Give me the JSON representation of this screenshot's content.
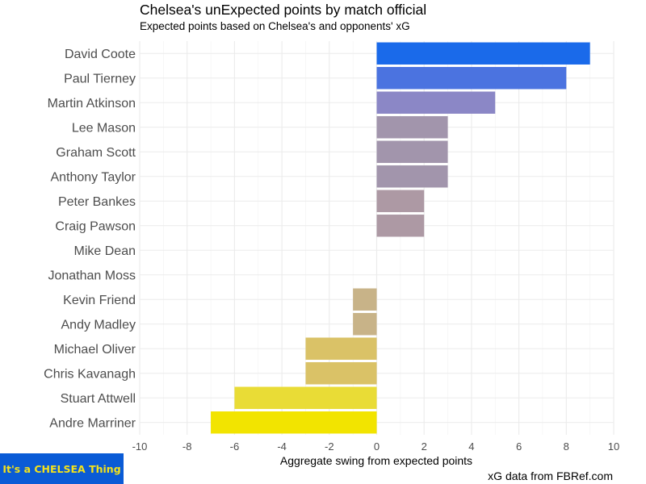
{
  "chart_data": {
    "type": "bar",
    "orientation": "horizontal",
    "title": "Chelsea's unExpected points by match official",
    "subtitle": "Expected points based on Chelsea's and opponents' xG",
    "xlabel": "Aggregate swing from expected points",
    "ylabel": "",
    "caption": "xG data from FBRef.com",
    "xlim": [
      -10,
      10
    ],
    "xticks": [
      -10,
      -8,
      -6,
      -4,
      -2,
      0,
      2,
      4,
      6,
      8,
      10
    ],
    "grid": true,
    "categories": [
      "David Coote",
      "Paul Tierney",
      "Martin Atkinson",
      "Lee Mason",
      "Graham Scott",
      "Anthony Taylor",
      "Peter Bankes",
      "Craig Pawson",
      "Mike Dean",
      "Jonathan Moss",
      "Kevin Friend",
      "Andy Madley",
      "Michael Oliver",
      "Chris Kavanagh",
      "Stuart Attwell",
      "Andre Marriner"
    ],
    "values": [
      9,
      8,
      5,
      3,
      3,
      3,
      2,
      2,
      0,
      0,
      -1,
      -1,
      -3,
      -3,
      -6,
      -7
    ],
    "colors": [
      "#1a6aea",
      "#4b73e0",
      "#8b87c6",
      "#a295ac",
      "#a295ac",
      "#a295ac",
      "#ad99a4",
      "#ad99a4",
      "#b8a292",
      "#b8a292",
      "#c8b388",
      "#c8b388",
      "#dac267",
      "#dac267",
      "#e9dc36",
      "#f2e400"
    ]
  },
  "logo": {
    "text": "It's a CHELSEA Thing",
    "background": "#0a5bd6",
    "text_color": "#f4e21a"
  }
}
